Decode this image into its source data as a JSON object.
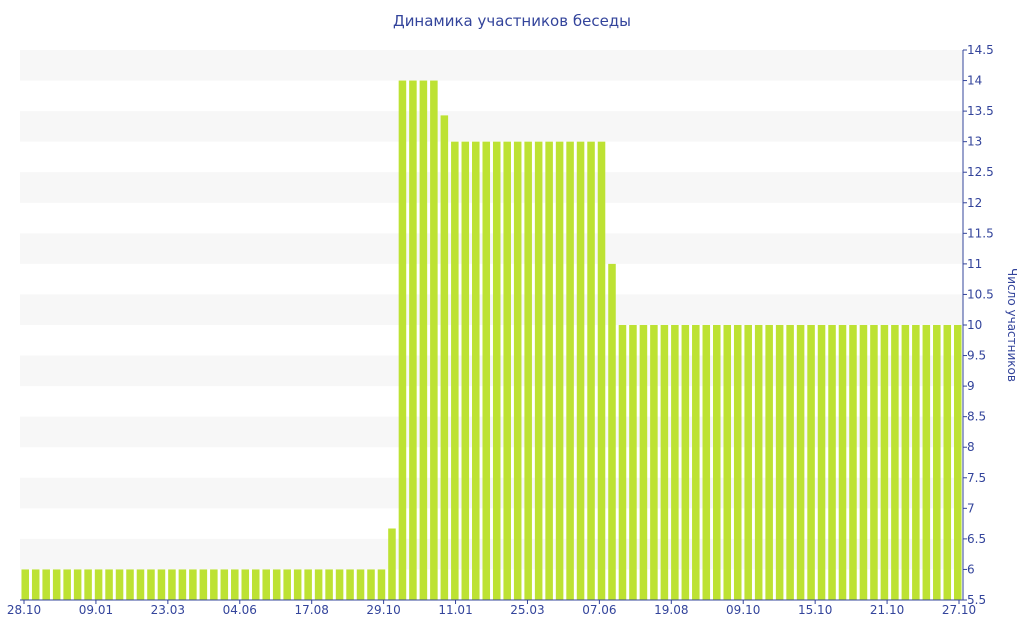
{
  "chart_data": {
    "type": "bar",
    "title": "Динамика участников беседы",
    "ylabel": "Число участников",
    "xlabel": "",
    "ylim": [
      5.5,
      14.5
    ],
    "yticks": [
      5.5,
      6,
      6.5,
      7,
      7.5,
      8,
      8.5,
      9,
      9.5,
      10,
      10.5,
      11,
      11.5,
      12,
      12.5,
      13,
      13.5,
      14,
      14.5
    ],
    "y_axis_position": "right",
    "grid": "alternating horizontal bands",
    "xtick_labels": [
      "28.10",
      "09.01",
      "23.03",
      "04.06",
      "17.08",
      "29.10",
      "11.01",
      "25.03",
      "07.06",
      "19.08",
      "09.10",
      "15.10",
      "21.10",
      "27.10"
    ],
    "bar_color": "#bde233",
    "values": [
      6,
      6,
      6,
      6,
      6,
      6,
      6,
      6,
      6,
      6,
      6,
      6,
      6,
      6,
      6,
      6,
      6,
      6,
      6,
      6,
      6,
      6,
      6,
      6,
      6,
      6,
      6,
      6,
      6,
      6,
      6,
      6,
      6,
      6,
      6,
      6.67,
      14,
      14,
      14,
      14,
      13.43,
      13,
      13,
      13,
      13,
      13,
      13,
      13,
      13,
      13,
      13,
      13,
      13,
      13,
      13,
      13,
      11,
      10,
      10,
      10,
      10,
      10,
      10,
      10,
      10,
      10,
      10,
      10,
      10,
      10,
      10,
      10,
      10,
      10,
      10,
      10,
      10,
      10,
      10,
      10,
      10,
      10,
      10,
      10,
      10,
      10,
      10,
      10,
      10,
      10
    ]
  }
}
